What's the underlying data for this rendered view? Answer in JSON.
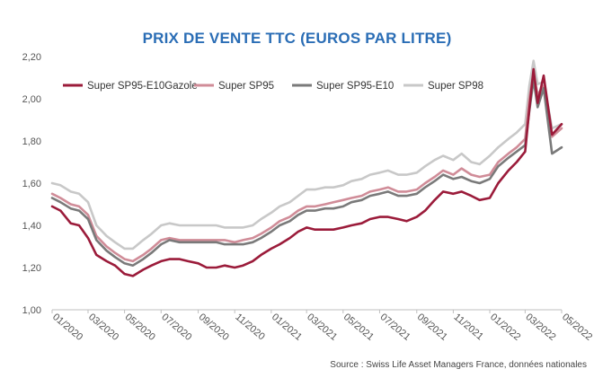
{
  "chart_data": {
    "type": "line",
    "title": "PRIX DE VENTE TTC (EUROS PAR LITRE)",
    "xlabel": "",
    "ylabel": "",
    "ylim": [
      1.0,
      2.2
    ],
    "yticks": [
      "1,00",
      "1,20",
      "1,40",
      "1,60",
      "1,80",
      "2,00",
      "2,20"
    ],
    "xticks": [
      "01/2020",
      "03/2020",
      "05/2020",
      "07/2020",
      "09/2020",
      "11/2020",
      "01/2021",
      "03/2021",
      "05/2021",
      "07/2021",
      "09/2021",
      "11/2021",
      "01/2022",
      "03/2022",
      "05/2022"
    ],
    "xlim": [
      "2020-01",
      "2022-05"
    ],
    "grid": false,
    "legend": "top-left",
    "source": "Source : Swiss Life Asset Managers France, données nationales",
    "x": [
      "2020-01-01",
      "2020-01-15",
      "2020-02-01",
      "2020-02-15",
      "2020-03-01",
      "2020-03-15",
      "2020-04-01",
      "2020-04-15",
      "2020-05-01",
      "2020-05-15",
      "2020-06-01",
      "2020-06-15",
      "2020-07-01",
      "2020-07-15",
      "2020-08-01",
      "2020-08-15",
      "2020-09-01",
      "2020-09-15",
      "2020-10-01",
      "2020-10-15",
      "2020-11-01",
      "2020-11-15",
      "2020-12-01",
      "2020-12-15",
      "2021-01-01",
      "2021-01-15",
      "2021-02-01",
      "2021-02-15",
      "2021-03-01",
      "2021-03-15",
      "2021-04-01",
      "2021-04-15",
      "2021-05-01",
      "2021-05-15",
      "2021-06-01",
      "2021-06-15",
      "2021-07-01",
      "2021-07-15",
      "2021-08-01",
      "2021-08-15",
      "2021-09-01",
      "2021-09-15",
      "2021-10-01",
      "2021-10-15",
      "2021-11-01",
      "2021-11-15",
      "2021-12-01",
      "2021-12-15",
      "2022-01-01",
      "2022-01-15",
      "2022-02-01",
      "2022-02-15",
      "2022-03-01",
      "2022-03-08",
      "2022-03-15",
      "2022-03-22",
      "2022-04-01",
      "2022-04-15",
      "2022-05-01"
    ],
    "series": [
      {
        "name": "Super SP95-E10Gazole",
        "color": "#9b1b3a",
        "values": [
          1.49,
          1.47,
          1.41,
          1.4,
          1.34,
          1.26,
          1.23,
          1.21,
          1.17,
          1.16,
          1.19,
          1.21,
          1.23,
          1.24,
          1.24,
          1.23,
          1.22,
          1.2,
          1.2,
          1.21,
          1.2,
          1.21,
          1.23,
          1.26,
          1.29,
          1.31,
          1.34,
          1.37,
          1.39,
          1.38,
          1.38,
          1.38,
          1.39,
          1.4,
          1.41,
          1.43,
          1.44,
          1.44,
          1.43,
          1.42,
          1.44,
          1.47,
          1.52,
          1.56,
          1.55,
          1.56,
          1.54,
          1.52,
          1.53,
          1.6,
          1.66,
          1.7,
          1.75,
          1.95,
          2.14,
          1.98,
          2.11,
          1.83,
          1.88
        ]
      },
      {
        "name": "Super SP95",
        "color": "#d08c98",
        "values": [
          1.55,
          1.53,
          1.5,
          1.49,
          1.45,
          1.35,
          1.3,
          1.27,
          1.24,
          1.23,
          1.26,
          1.29,
          1.33,
          1.34,
          1.33,
          1.33,
          1.33,
          1.33,
          1.33,
          1.33,
          1.32,
          1.33,
          1.34,
          1.36,
          1.39,
          1.42,
          1.44,
          1.47,
          1.49,
          1.49,
          1.5,
          1.51,
          1.52,
          1.53,
          1.54,
          1.56,
          1.57,
          1.58,
          1.56,
          1.56,
          1.57,
          1.6,
          1.63,
          1.66,
          1.64,
          1.67,
          1.64,
          1.63,
          1.64,
          1.7,
          1.74,
          1.77,
          1.81,
          2.0,
          2.12,
          2.02,
          2.06,
          1.82,
          1.86
        ]
      },
      {
        "name": "Super SP95-E10",
        "color": "#7a7a7a",
        "values": [
          1.53,
          1.51,
          1.48,
          1.47,
          1.43,
          1.33,
          1.28,
          1.25,
          1.22,
          1.21,
          1.24,
          1.27,
          1.31,
          1.33,
          1.32,
          1.32,
          1.32,
          1.32,
          1.32,
          1.31,
          1.31,
          1.31,
          1.32,
          1.34,
          1.37,
          1.4,
          1.42,
          1.45,
          1.47,
          1.47,
          1.48,
          1.48,
          1.49,
          1.51,
          1.52,
          1.54,
          1.55,
          1.56,
          1.54,
          1.54,
          1.55,
          1.58,
          1.61,
          1.64,
          1.62,
          1.63,
          1.61,
          1.6,
          1.62,
          1.68,
          1.72,
          1.75,
          1.78,
          1.94,
          2.09,
          1.96,
          2.05,
          1.74,
          1.77
        ]
      },
      {
        "name": "Super SP98",
        "color": "#c8c8c8",
        "values": [
          1.6,
          1.59,
          1.56,
          1.55,
          1.51,
          1.4,
          1.35,
          1.32,
          1.29,
          1.29,
          1.33,
          1.36,
          1.4,
          1.41,
          1.4,
          1.4,
          1.4,
          1.4,
          1.4,
          1.39,
          1.39,
          1.39,
          1.4,
          1.43,
          1.46,
          1.49,
          1.51,
          1.54,
          1.57,
          1.57,
          1.58,
          1.58,
          1.59,
          1.61,
          1.62,
          1.64,
          1.65,
          1.66,
          1.64,
          1.64,
          1.65,
          1.68,
          1.71,
          1.73,
          1.71,
          1.74,
          1.7,
          1.69,
          1.73,
          1.77,
          1.81,
          1.84,
          1.88,
          2.06,
          2.18,
          2.07,
          2.08,
          1.86,
          1.88
        ]
      }
    ]
  }
}
